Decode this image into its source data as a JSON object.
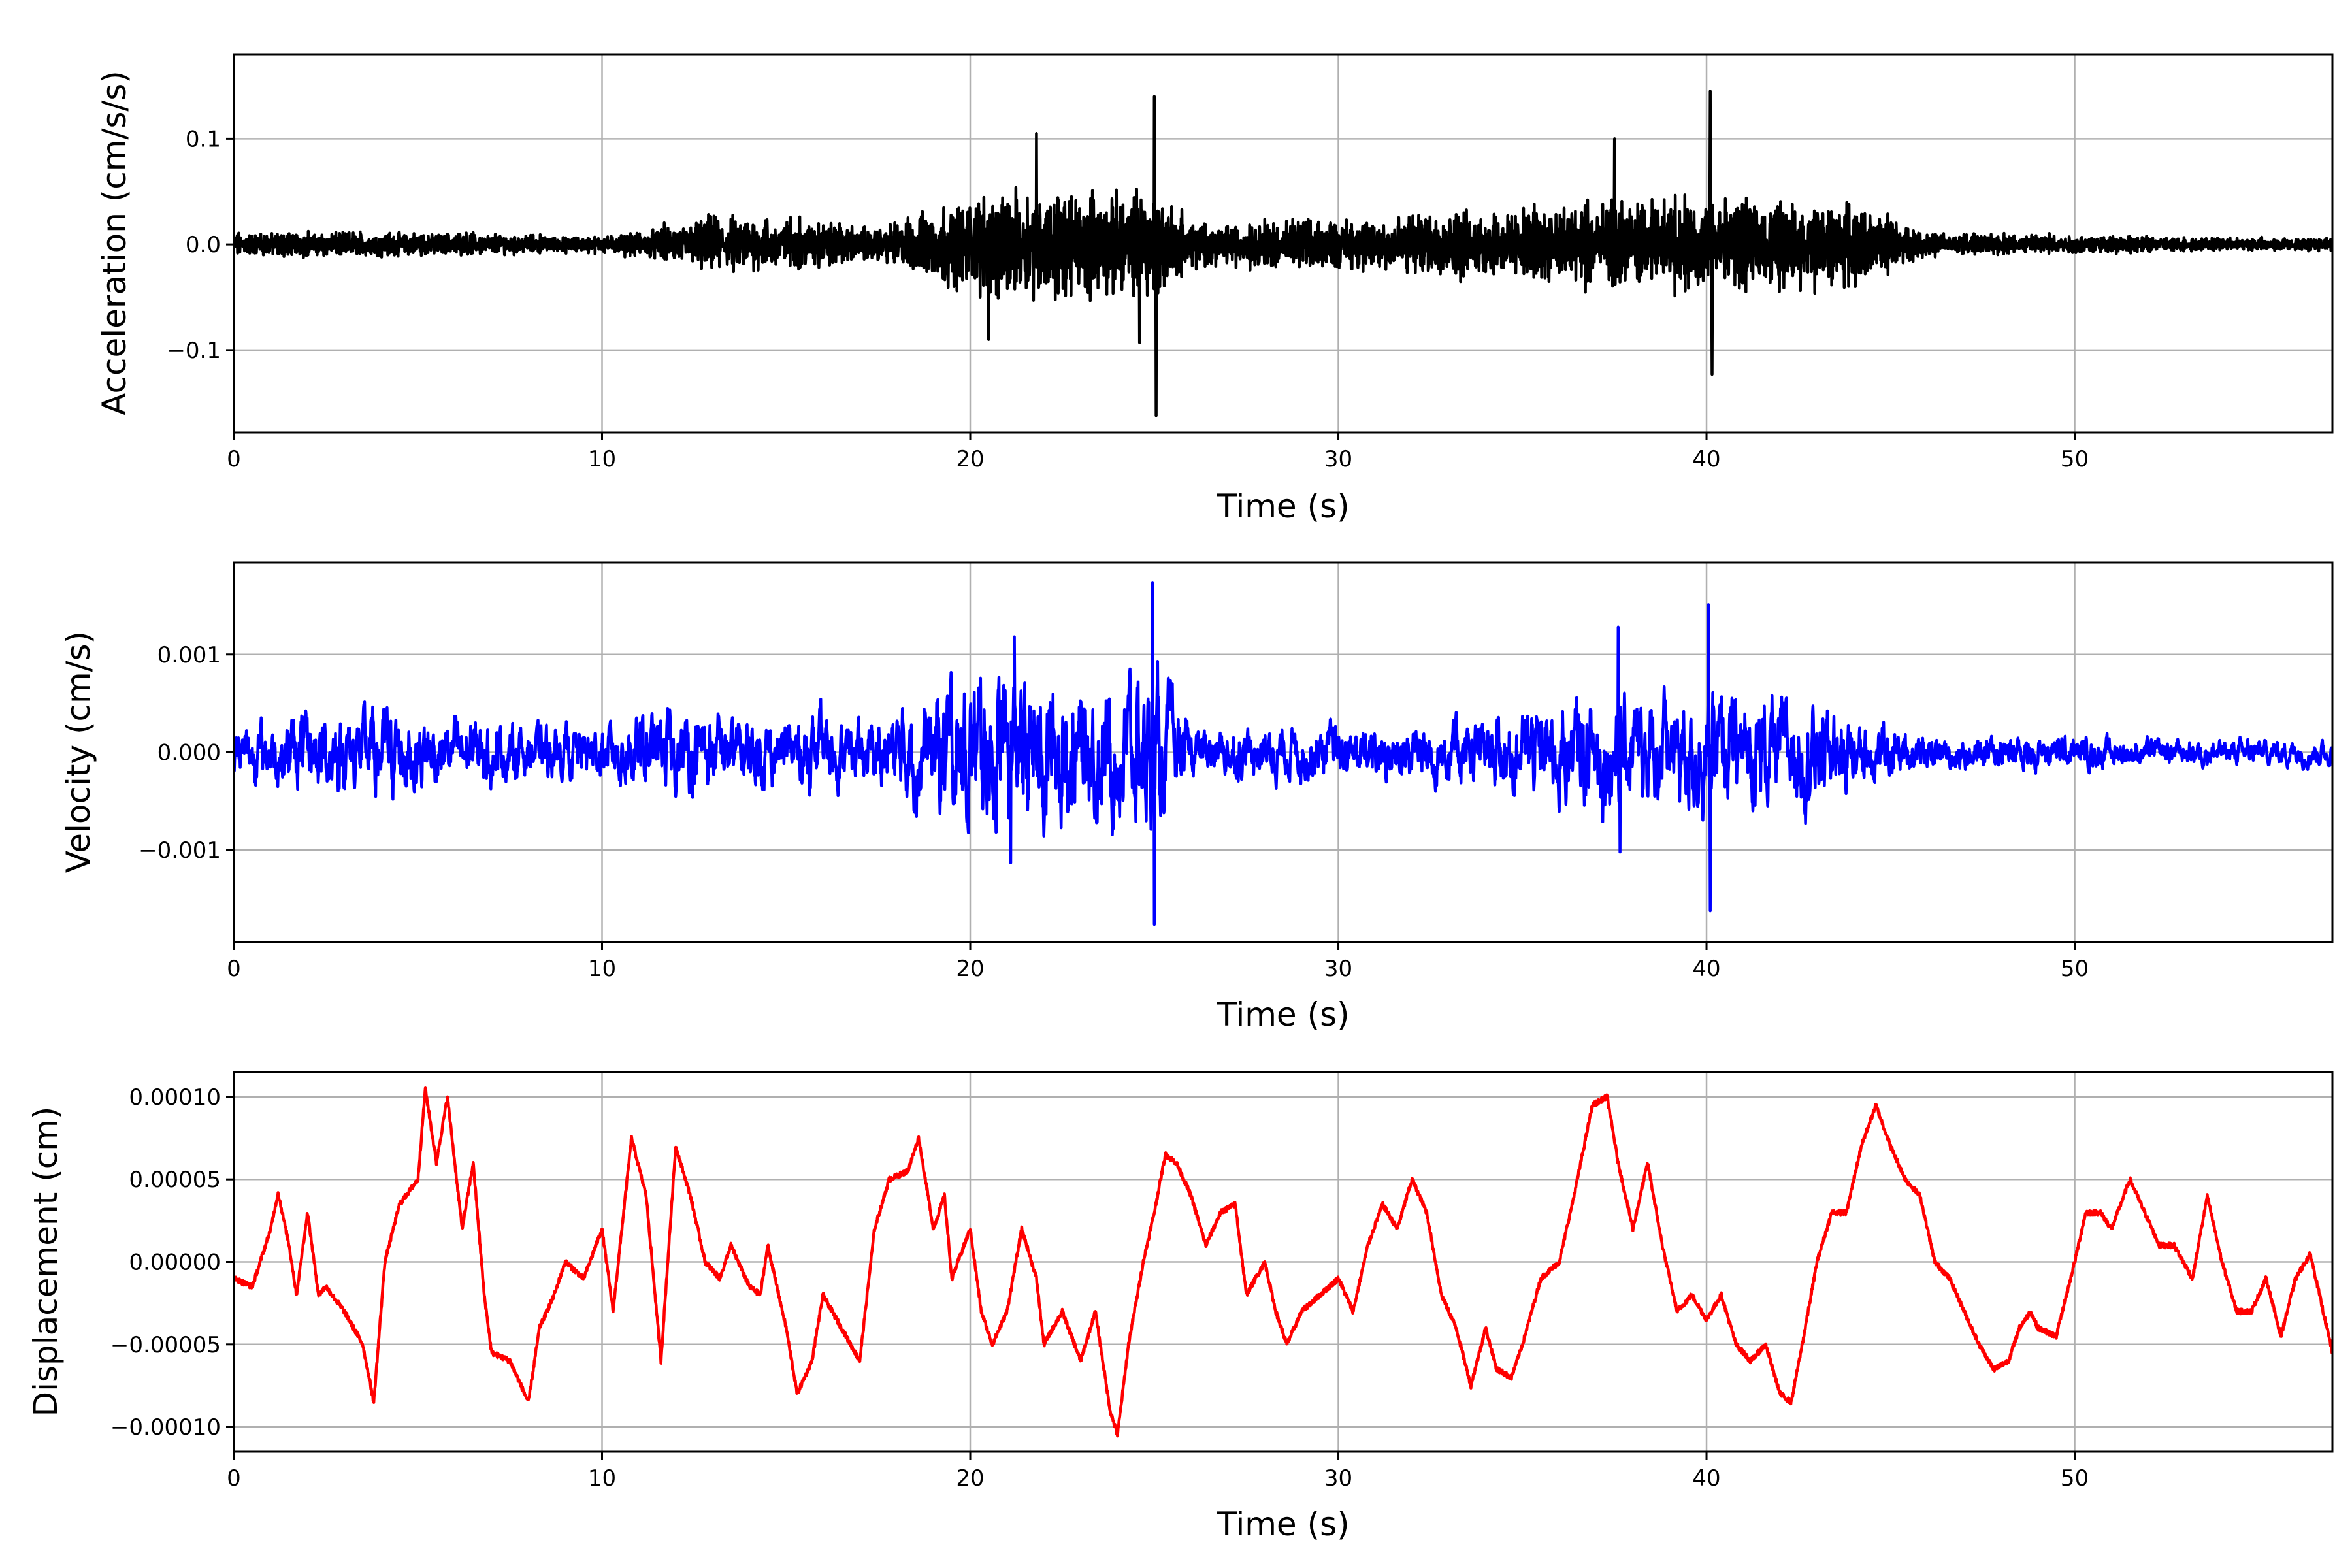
{
  "chart_data": [
    {
      "type": "line",
      "name": "acceleration",
      "xlabel": "Time (s)",
      "ylabel": "Acceleration (cm/s/s)",
      "color": "#000000",
      "xlim": [
        0,
        57
      ],
      "ylim": [
        -0.178,
        0.18
      ],
      "grid": true,
      "xticks": [
        0,
        10,
        20,
        30,
        40,
        50
      ],
      "xtick_labels": [
        "0",
        "10",
        "20",
        "30",
        "40",
        "50"
      ],
      "yticks": [
        -0.1,
        0.0,
        0.1
      ],
      "ytick_labels": [
        "−0.1",
        "0.0",
        "0.1"
      ],
      "envelope_t": [
        0,
        2,
        4,
        6,
        8,
        9,
        10,
        11,
        12,
        13,
        14,
        15,
        16,
        17,
        18,
        19,
        20,
        21,
        22,
        23,
        24,
        25,
        26,
        27,
        28,
        29,
        30,
        31,
        32,
        33,
        34,
        35,
        36,
        37,
        38,
        39,
        40,
        41,
        42,
        43,
        44,
        45,
        46,
        48,
        50,
        52,
        54,
        57
      ],
      "envelope_amp": [
        0.014,
        0.016,
        0.015,
        0.014,
        0.012,
        0.009,
        0.01,
        0.015,
        0.025,
        0.035,
        0.035,
        0.03,
        0.03,
        0.02,
        0.025,
        0.05,
        0.06,
        0.065,
        0.07,
        0.06,
        0.06,
        0.07,
        0.03,
        0.025,
        0.03,
        0.03,
        0.03,
        0.035,
        0.04,
        0.045,
        0.04,
        0.045,
        0.05,
        0.06,
        0.05,
        0.05,
        0.06,
        0.05,
        0.055,
        0.05,
        0.05,
        0.03,
        0.015,
        0.012,
        0.012,
        0.01,
        0.008,
        0.007
      ],
      "peaks": [
        {
          "t": 25.0,
          "value": 0.14
        },
        {
          "t": 25.05,
          "value": -0.162
        },
        {
          "t": 40.1,
          "value": 0.145
        },
        {
          "t": 40.15,
          "value": -0.123
        },
        {
          "t": 21.8,
          "value": 0.105
        },
        {
          "t": 37.5,
          "value": 0.1
        },
        {
          "t": 24.6,
          "value": -0.093
        },
        {
          "t": 20.5,
          "value": -0.09
        }
      ]
    },
    {
      "type": "line",
      "name": "velocity",
      "xlabel": "Time (s)",
      "ylabel": "Velocity (cm/s)",
      "color": "#0000ff",
      "xlim": [
        0,
        57
      ],
      "ylim": [
        -0.00194,
        0.00194
      ],
      "grid": true,
      "xticks": [
        0,
        10,
        20,
        30,
        40,
        50
      ],
      "xtick_labels": [
        "0",
        "10",
        "20",
        "30",
        "40",
        "50"
      ],
      "yticks": [
        -0.001,
        0.0,
        0.001
      ],
      "ytick_labels": [
        "−0.001",
        "0.000",
        "0.001"
      ],
      "envelope_t": [
        0,
        2,
        4,
        6,
        8,
        10,
        11,
        12,
        14,
        16,
        17,
        18,
        19,
        20,
        21,
        22,
        23,
        24,
        25,
        26,
        28,
        30,
        32,
        34,
        36,
        37,
        38,
        40,
        42,
        43,
        44,
        45,
        46,
        48,
        50,
        52,
        54,
        57
      ],
      "envelope_amp": [
        0.0003,
        0.00045,
        0.0005,
        0.0004,
        0.0003,
        0.0003,
        0.00045,
        0.0005,
        0.0004,
        0.0004,
        0.0003,
        0.0005,
        0.0007,
        0.0009,
        0.0009,
        0.0009,
        0.0008,
        0.0008,
        0.0009,
        0.0003,
        0.0003,
        0.0003,
        0.00035,
        0.0004,
        0.0006,
        0.0007,
        0.0006,
        0.0007,
        0.0006,
        0.0006,
        0.0004,
        0.0003,
        0.0002,
        0.0002,
        0.0002,
        0.00015,
        0.00015,
        0.00015
      ],
      "peaks": [
        {
          "t": 24.95,
          "value": 0.00173
        },
        {
          "t": 25.0,
          "value": -0.00176
        },
        {
          "t": 40.05,
          "value": 0.00151
        },
        {
          "t": 40.1,
          "value": -0.00162
        },
        {
          "t": 37.6,
          "value": 0.00128
        },
        {
          "t": 37.65,
          "value": -0.00102
        },
        {
          "t": 21.1,
          "value": -0.00113
        },
        {
          "t": 21.2,
          "value": 0.00118
        }
      ]
    },
    {
      "type": "line",
      "name": "displacement",
      "xlabel": "Time (s)",
      "ylabel": "Displacement (cm)",
      "color": "#ff0000",
      "xlim": [
        0,
        57
      ],
      "ylim": [
        -0.000115,
        0.000115
      ],
      "grid": true,
      "xticks": [
        0,
        10,
        20,
        30,
        40,
        50
      ],
      "xtick_labels": [
        "0",
        "10",
        "20",
        "30",
        "40",
        "50"
      ],
      "yticks": [
        -0.0001,
        -5e-05,
        0.0,
        5e-05,
        0.0001
      ],
      "ytick_labels": [
        "−0.00010",
        "−0.00005",
        "0.00000",
        "0.00005",
        "0.00010"
      ],
      "t": [
        0,
        0.5,
        1.0,
        1.2,
        1.5,
        1.7,
        2.0,
        2.3,
        2.5,
        3.0,
        3.5,
        3.8,
        4.1,
        4.5,
        5.0,
        5.2,
        5.5,
        5.8,
        6.2,
        6.5,
        6.8,
        7.0,
        7.5,
        8.0,
        8.3,
        8.7,
        9.0,
        9.5,
        10.0,
        10.3,
        10.8,
        11.2,
        11.6,
        12.0,
        12.4,
        12.8,
        13.2,
        13.5,
        14.0,
        14.3,
        14.5,
        15.0,
        15.3,
        15.7,
        16.0,
        16.5,
        17.0,
        17.4,
        17.8,
        18.3,
        18.6,
        19.0,
        19.3,
        19.5,
        20.0,
        20.3,
        20.6,
        21.0,
        21.4,
        21.8,
        22.0,
        22.5,
        23.0,
        23.4,
        23.8,
        24.0,
        24.3,
        24.7,
        25.0,
        25.3,
        25.6,
        26.0,
        26.4,
        26.8,
        27.2,
        27.5,
        28.0,
        28.3,
        28.6,
        29.0,
        29.5,
        30.0,
        30.4,
        30.8,
        31.2,
        31.6,
        32.0,
        32.4,
        32.8,
        33.2,
        33.6,
        34.0,
        34.3,
        34.7,
        35.0,
        35.5,
        36.0,
        36.4,
        36.9,
        37.3,
        37.6,
        38.0,
        38.4,
        38.8,
        39.2,
        39.6,
        40.0,
        40.4,
        40.8,
        41.2,
        41.6,
        42.0,
        42.3,
        42.6,
        43.0,
        43.4,
        43.8,
        44.2,
        44.6,
        45.0,
        45.4,
        45.8,
        46.2,
        46.6,
        47.0,
        47.4,
        47.8,
        48.2,
        48.5,
        48.8,
        49.0,
        49.5,
        50.0,
        50.3,
        50.7,
        51.0,
        51.5,
        51.9,
        52.3,
        52.7,
        53.2,
        53.6,
        54.0,
        54.4,
        54.8,
        55.2,
        55.6,
        56.0,
        56.4,
        56.8,
        57.0
      ],
      "values_e5": [
        -1,
        -1.5,
        2,
        4.2,
        1,
        -2,
        3,
        -2,
        -1.5,
        -3,
        -5,
        -8.5,
        0,
        3.5,
        5,
        10.5,
        6,
        10,
        2,
        6,
        -2,
        -5.5,
        -6,
        -8.5,
        -4,
        -2,
        0,
        -1,
        2,
        -3,
        7.5,
        4,
        -6,
        7,
        4,
        0,
        -1,
        1,
        -1.5,
        -2,
        1,
        -4,
        -8,
        -6,
        -2,
        -4,
        -6,
        2,
        5,
        5.5,
        7.5,
        2,
        4,
        -1,
        2,
        -3,
        -5,
        -3,
        2,
        -1,
        -5,
        -3,
        -6,
        -3,
        -9,
        -10.5,
        -5,
        0,
        3,
        6.5,
        6,
        4,
        1,
        3,
        3.5,
        -2,
        0,
        -3,
        -5,
        -3,
        -2,
        -1,
        -3,
        1,
        3.5,
        2,
        5,
        3,
        -2,
        -4,
        -7.5,
        -4,
        -6.5,
        -7,
        -5,
        -1,
        0,
        4,
        9.5,
        10,
        6,
        2,
        6,
        1,
        -3,
        -2,
        -3.5,
        -2,
        -5,
        -6,
        -5,
        -8,
        -8.5,
        -5,
        0,
        3,
        3,
        7,
        9.5,
        7,
        5,
        4,
        0,
        -1,
        -3,
        -5,
        -6.5,
        -6,
        -4,
        -3,
        -4,
        -4.5,
        0,
        3,
        3,
        2,
        5,
        3,
        1,
        1,
        -1,
        4,
        0,
        -3,
        -3,
        -1,
        -4.5,
        -1,
        0.5,
        -3.5,
        -5.5
      ],
      "values_scale": 1e-05
    }
  ]
}
